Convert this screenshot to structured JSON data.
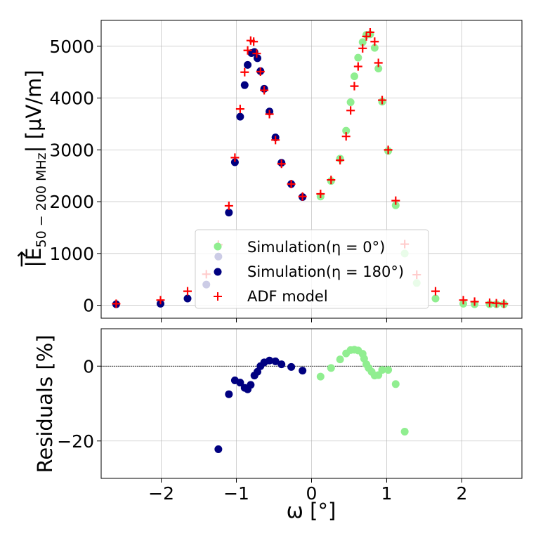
{
  "chart_data": [
    {
      "type": "scatter",
      "panel": "top",
      "xlim": [
        -2.8,
        2.8
      ],
      "ylim": [
        -250,
        5500
      ],
      "xticks": [
        -2,
        -1,
        0,
        1,
        2
      ],
      "yticks": [
        0,
        1000,
        2000,
        3000,
        4000,
        5000
      ],
      "ytick_labels": [
        "0",
        "1000",
        "2000",
        "3000",
        "4000",
        "5000"
      ],
      "ylabel_main": "|E",
      "ylabel_arrow": "→",
      "ylabel_sub": "50 − 200 MHz",
      "ylabel_unit": "| [μV/m]",
      "grid": true,
      "legend_position": "center",
      "series": [
        {
          "name": "Simulation(η = 0°)",
          "marker": "circle",
          "color": "#90ee90",
          "x": [
            0.12,
            0.26,
            0.38,
            0.46,
            0.52,
            0.57,
            0.62,
            0.68,
            0.73,
            0.78,
            0.84,
            0.89,
            0.94,
            1.02,
            1.12,
            1.24,
            1.4,
            1.65,
            2.02,
            2.17,
            2.37,
            2.46,
            2.56
          ],
          "y": [
            2100,
            2400,
            2830,
            3370,
            3920,
            4420,
            4780,
            5080,
            5220,
            5230,
            4970,
            4570,
            3930,
            2980,
            1930,
            1000,
            430,
            130,
            30,
            20,
            20,
            20,
            20
          ]
        },
        {
          "name": "Simulation(η = 180°)",
          "marker": "circle",
          "color": "#000080",
          "x": [
            -2.6,
            -2.01,
            -1.65,
            -1.4,
            -1.24,
            -1.1,
            -1.02,
            -0.95,
            -0.89,
            -0.85,
            -0.8,
            -0.76,
            -0.72,
            -0.68,
            -0.63,
            -0.56,
            -0.48,
            -0.4,
            -0.27,
            -0.12
          ],
          "y": [
            20,
            30,
            130,
            400,
            940,
            1790,
            2760,
            3640,
            4250,
            4640,
            4870,
            4890,
            4770,
            4520,
            4180,
            3740,
            3240,
            2750,
            2340,
            2090
          ]
        },
        {
          "name": "ADF model",
          "marker": "plus",
          "color": "#ff0000",
          "x": [
            -2.6,
            -2.01,
            -1.65,
            -1.4,
            -1.24,
            -1.1,
            -1.02,
            -0.95,
            -0.89,
            -0.85,
            -0.81,
            -0.77,
            -0.73,
            -0.68,
            -0.63,
            -0.56,
            -0.48,
            -0.4,
            -0.27,
            -0.12,
            0.12,
            0.26,
            0.38,
            0.46,
            0.52,
            0.57,
            0.62,
            0.68,
            0.73,
            0.78,
            0.84,
            0.89,
            0.94,
            1.02,
            1.12,
            1.24,
            1.4,
            1.65,
            2.02,
            2.17,
            2.37,
            2.46,
            2.56
          ],
          "y": [
            30,
            100,
            270,
            600,
            1170,
            1920,
            2850,
            3790,
            4500,
            4920,
            5110,
            5090,
            4860,
            4510,
            4150,
            3690,
            3190,
            2730,
            2340,
            2100,
            2150,
            2420,
            2800,
            3260,
            3760,
            4230,
            4610,
            4960,
            5190,
            5270,
            5090,
            4680,
            3960,
            3000,
            2020,
            1180,
            590,
            270,
            100,
            70,
            50,
            40,
            30
          ]
        }
      ]
    },
    {
      "type": "scatter",
      "panel": "bottom",
      "xlim": [
        -2.8,
        2.8
      ],
      "ylim": [
        -30,
        10
      ],
      "xticks": [
        -2,
        -1,
        0,
        1,
        2
      ],
      "xtick_labels": [
        "−2",
        "−1",
        "0",
        "1",
        "2"
      ],
      "yticks": [
        -20,
        0
      ],
      "ytick_labels": [
        "−20",
        "0"
      ],
      "xlabel": "ω [°]",
      "ylabel": "Residuals [%]",
      "reference_line": 0,
      "grid": true,
      "series": [
        {
          "name": "η = 0°",
          "color": "#90ee90",
          "x": [
            0.12,
            0.26,
            0.38,
            0.46,
            0.52,
            0.57,
            0.62,
            0.68,
            0.7,
            0.73,
            0.76,
            0.8,
            0.84,
            0.89,
            0.94,
            1.02,
            1.12,
            1.24
          ],
          "y": [
            -2.8,
            -0.5,
            1.8,
            3.4,
            4.3,
            4.4,
            4.2,
            3.3,
            2.0,
            0.5,
            -0.5,
            -1.5,
            -2.5,
            -2.4,
            -1.0,
            -1.0,
            -4.8,
            -17.5
          ]
        },
        {
          "name": "η = 180°",
          "color": "#000080",
          "x": [
            -1.24,
            -1.1,
            -1.02,
            -0.95,
            -0.89,
            -0.85,
            -0.81,
            -0.76,
            -0.72,
            -0.68,
            -0.63,
            -0.56,
            -0.48,
            -0.4,
            -0.27,
            -0.12
          ],
          "y": [
            -22.2,
            -7.5,
            -3.8,
            -4.4,
            -5.8,
            -6.2,
            -5.0,
            -2.5,
            -1.5,
            0.0,
            1.0,
            1.5,
            1.3,
            0.5,
            -0.2,
            -1.2
          ]
        }
      ]
    }
  ]
}
